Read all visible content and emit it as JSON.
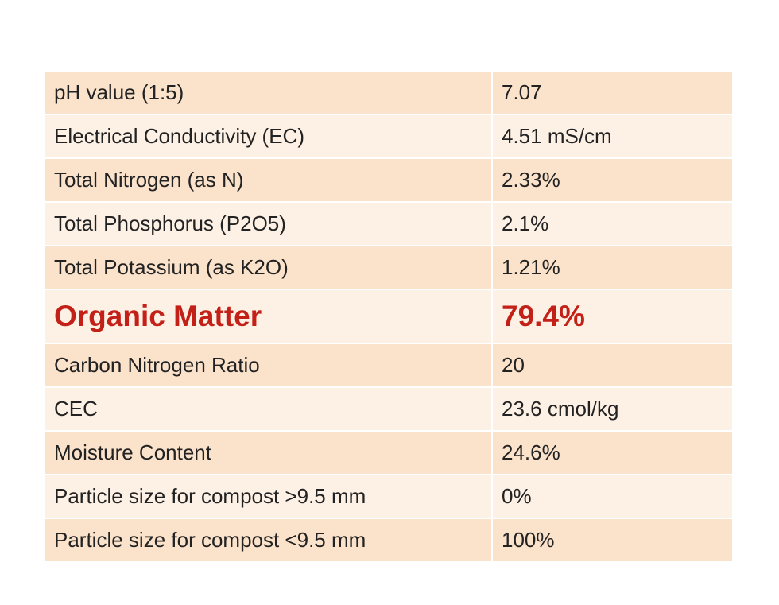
{
  "table": {
    "rows": [
      [
        "pH value (1:5)",
        "7.07"
      ],
      [
        "Electrical Conductivity (EC)",
        "4.51 mS/cm"
      ],
      [
        "Total Nitrogen (as N)",
        "2.33%"
      ],
      [
        "Total Phosphorus (P2O5)",
        "2.1%"
      ],
      [
        "Total Potassium (as K2O)",
        "1.21%"
      ],
      [
        "Organic Matter",
        "79.4%"
      ],
      [
        "Carbon Nitrogen Ratio",
        "20"
      ],
      [
        "CEC",
        "23.6 cmol/kg"
      ],
      [
        "Moisture Content",
        "24.6%"
      ],
      [
        "Particle size for compost >9.5 mm",
        "0%"
      ],
      [
        "Particle size for compost <9.5 mm",
        "100%"
      ]
    ]
  }
}
